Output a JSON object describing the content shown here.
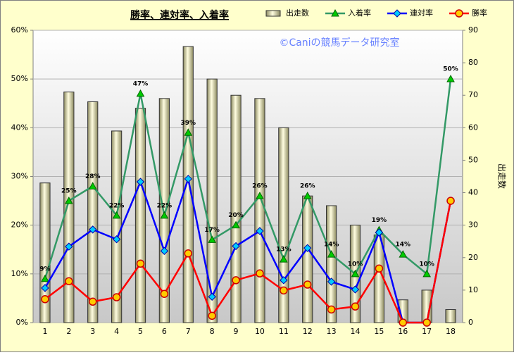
{
  "chart_data": {
    "type": "bar-line",
    "title": "勝率、連対率、入着率",
    "watermark": "©Caniの競馬データ研究室",
    "y2label": "出走数",
    "categories": [
      "1",
      "2",
      "3",
      "4",
      "5",
      "6",
      "7",
      "8",
      "9",
      "10",
      "11",
      "12",
      "13",
      "14",
      "15",
      "16",
      "17",
      "18"
    ],
    "series": [
      {
        "name": "出走数",
        "type": "bar",
        "axis": "y2",
        "color": "#eeeab0",
        "values": [
          43,
          71,
          68,
          59,
          66,
          69,
          85,
          75,
          70,
          69,
          60,
          39,
          36,
          30,
          27,
          7,
          10,
          4
        ]
      },
      {
        "name": "入着率",
        "type": "line",
        "marker": "triangle",
        "color": "#339966",
        "marker_color": "#00cc00",
        "values": [
          9,
          25,
          28,
          22,
          47,
          22,
          39,
          17,
          20,
          26,
          13,
          26,
          14,
          10,
          19,
          14,
          10,
          50
        ],
        "value_labels": [
          "9%",
          "25%",
          "28%",
          "22%",
          "47%",
          "22%",
          "39%",
          "17%",
          "20%",
          "26%",
          "13%",
          "26%",
          "14%",
          "10%",
          "19%",
          "14%",
          "10%",
          "50%"
        ]
      },
      {
        "name": "連対率",
        "type": "line",
        "marker": "diamond",
        "color": "#0000ff",
        "marker_color": "#00ccff",
        "values": [
          7.1,
          15.6,
          19.1,
          17.1,
          28.9,
          14.7,
          29.5,
          5.3,
          15.7,
          18.8,
          8.7,
          15.3,
          8.4,
          6.8,
          18.5,
          0,
          0,
          25
        ]
      },
      {
        "name": "勝率",
        "type": "line",
        "marker": "circle",
        "color": "#ff0000",
        "marker_color": "#ffcc00",
        "values": [
          4.8,
          8.5,
          4.3,
          5.2,
          12.1,
          5.9,
          14.2,
          1.4,
          8.7,
          10.1,
          6.6,
          7.8,
          2.7,
          3.3,
          11.1,
          0,
          0,
          25
        ]
      }
    ],
    "ylim": [
      0,
      60
    ],
    "yticks": [
      {
        "value": 0,
        "label": "0%"
      },
      {
        "value": 10,
        "label": "10%"
      },
      {
        "value": 20,
        "label": "20%"
      },
      {
        "value": 30,
        "label": "30%"
      },
      {
        "value": 40,
        "label": "40%"
      },
      {
        "value": 50,
        "label": "50%"
      },
      {
        "value": 60,
        "label": "60%"
      }
    ],
    "y2lim": [
      0,
      90
    ],
    "y2ticks": [
      0,
      10,
      20,
      30,
      40,
      50,
      60,
      70,
      80,
      90
    ],
    "legend": "top-right"
  }
}
